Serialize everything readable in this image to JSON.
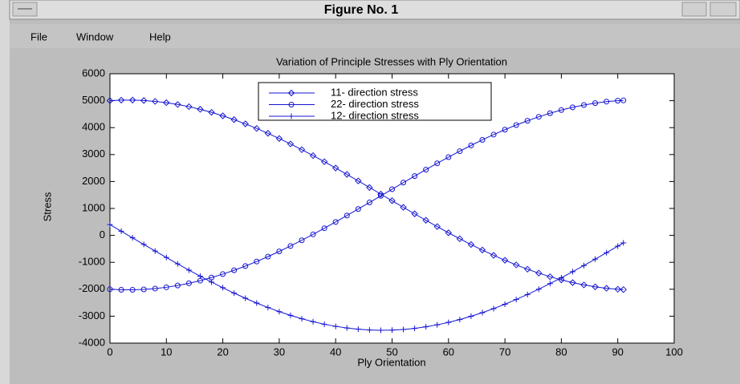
{
  "window": {
    "title": "Figure No. 1",
    "menu": [
      "File",
      "Window",
      "Help"
    ]
  },
  "chart_data": {
    "type": "line",
    "title": "Variation of Principle Stresses with Ply Orientation",
    "xlabel": "Ply Orientation",
    "ylabel": "Stress",
    "x": [
      0,
      2,
      4,
      6,
      8,
      10,
      12,
      14,
      16,
      18,
      20,
      22,
      24,
      26,
      28,
      30,
      32,
      34,
      36,
      38,
      40,
      42,
      44,
      46,
      48,
      50,
      52,
      54,
      56,
      58,
      60,
      62,
      64,
      66,
      68,
      70,
      72,
      74,
      76,
      78,
      80,
      82,
      84,
      86,
      88,
      90,
      91
    ],
    "series": [
      {
        "name": "11- direction stress",
        "color": "#1414d2",
        "marker": "diamond",
        "values": [
          5000,
          5020,
          5022,
          5007,
          4975,
          4926,
          4860,
          4778,
          4680,
          4567,
          4438,
          4296,
          4139,
          3970,
          3789,
          3596,
          3394,
          3182,
          2962,
          2735,
          2502,
          2264,
          2022,
          1778,
          1532,
          1286,
          1041,
          799,
          560,
          325,
          96,
          -126,
          -340,
          -545,
          -740,
          -924,
          -1096,
          -1256,
          -1402,
          -1535,
          -1652,
          -1754,
          -1840,
          -1910,
          -1964,
          -2000,
          -2012
        ]
      },
      {
        "name": "22- direction stress",
        "color": "#1414d2",
        "marker": "circle",
        "values": [
          -2000,
          -2020,
          -2022,
          -2007,
          -1975,
          -1926,
          -1860,
          -1778,
          -1680,
          -1567,
          -1438,
          -1296,
          -1139,
          -970,
          -789,
          -596,
          -394,
          -182,
          38,
          265,
          498,
          736,
          978,
          1222,
          1468,
          1714,
          1959,
          2201,
          2440,
          2675,
          2904,
          3126,
          3340,
          3545,
          3740,
          3924,
          4096,
          4256,
          4402,
          4535,
          4652,
          4754,
          4840,
          4910,
          4964,
          5000,
          5012
        ]
      },
      {
        "name": "12- direction stress",
        "color": "#1414d2",
        "marker": "plus",
        "values": [
          400,
          155,
          -91,
          -337,
          -580,
          -821,
          -1058,
          -1290,
          -1516,
          -1734,
          -1943,
          -2144,
          -2333,
          -2512,
          -2678,
          -2831,
          -2970,
          -3095,
          -3205,
          -3299,
          -3377,
          -3439,
          -3484,
          -3512,
          -3523,
          -3516,
          -3493,
          -3453,
          -3395,
          -3321,
          -3231,
          -3125,
          -3004,
          -2869,
          -2719,
          -2556,
          -2381,
          -2194,
          -1997,
          -1789,
          -1573,
          -1349,
          -1119,
          -883,
          -643,
          -400,
          -278
        ]
      }
    ],
    "xlim": [
      0,
      100
    ],
    "xticks": [
      0,
      10,
      20,
      30,
      40,
      50,
      60,
      70,
      80,
      90,
      100
    ],
    "ylim": [
      -4000,
      6000
    ],
    "yticks": [
      -4000,
      -3000,
      -2000,
      -1000,
      0,
      1000,
      2000,
      3000,
      4000,
      5000,
      6000
    ],
    "grid": false
  }
}
